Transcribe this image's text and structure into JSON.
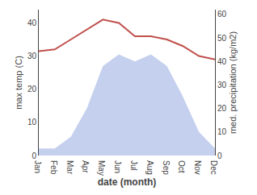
{
  "chart_data": {
    "type": "line",
    "categories": [
      "Jan",
      "Feb",
      "Mar",
      "Apr",
      "May",
      "Jun",
      "Jul",
      "Aug",
      "Sep",
      "Oct",
      "Nov",
      "Dec"
    ],
    "series": [
      {
        "type": "area",
        "axis": "y2",
        "color": "#c5d0ee",
        "values": [
          3,
          3,
          8,
          20,
          38,
          43,
          40,
          43,
          38,
          25,
          10,
          3
        ]
      },
      {
        "type": "line",
        "color": "#c0504d",
        "values": [
          31.5,
          32,
          35,
          38,
          41,
          40,
          36,
          36,
          35,
          33,
          30,
          29
        ]
      }
    ],
    "xlabel": "date (month)",
    "ylabel": "max temp (C)",
    "y2label": "med. precipitation (kg/m2)",
    "ylim": [
      0,
      44
    ],
    "yticks": [
      0,
      10,
      20,
      30,
      40
    ],
    "y2lim": [
      0,
      62
    ],
    "y2ticks": [
      0,
      10,
      20,
      30,
      40,
      50,
      60
    ],
    "grid": false
  }
}
